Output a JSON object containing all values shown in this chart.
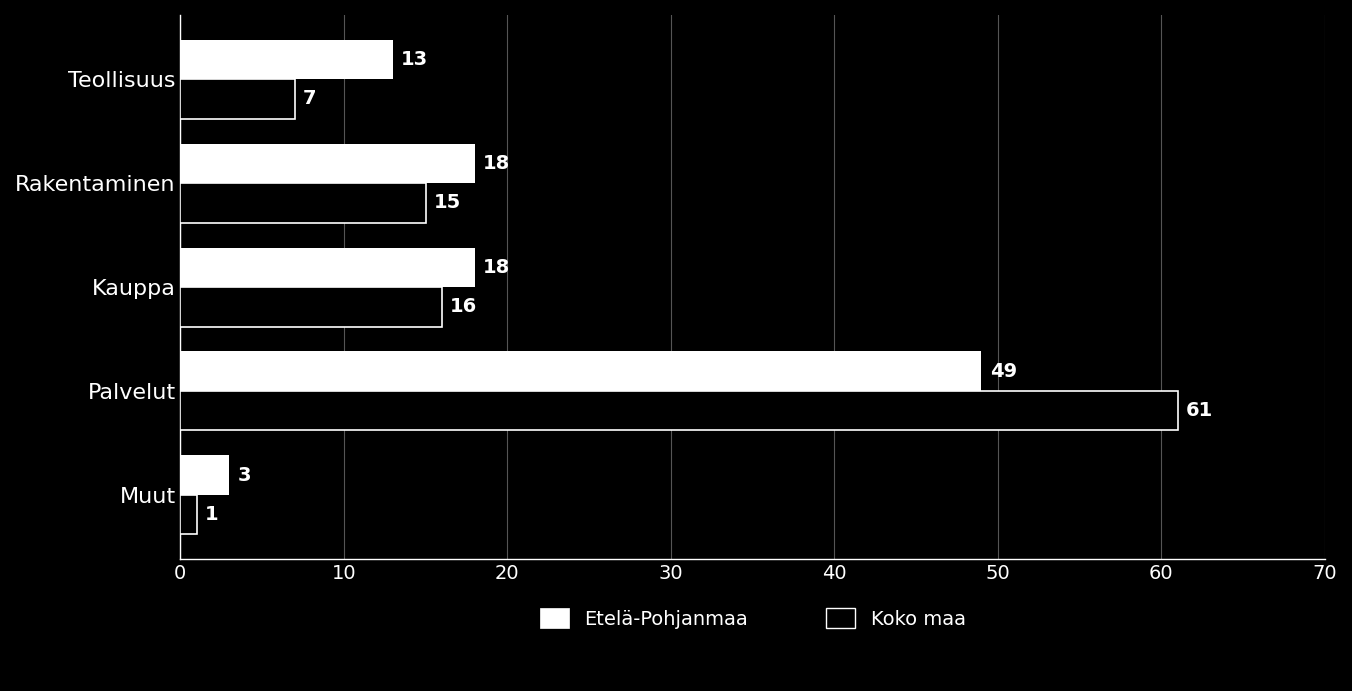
{
  "categories": [
    "Muut",
    "Palvelut",
    "Kauppa",
    "Rakentaminen",
    "Teollisuus"
  ],
  "series": [
    {
      "name": "Etelä-Pohjanmaa",
      "values": [
        3,
        49,
        18,
        18,
        13
      ],
      "color": "#ffffff"
    },
    {
      "name": "Koko maa",
      "values": [
        1,
        61,
        16,
        15,
        7
      ],
      "color": "#000000"
    }
  ],
  "xlim": [
    0,
    70
  ],
  "xticks": [
    0,
    10,
    20,
    30,
    40,
    50,
    60,
    70
  ],
  "background_color": "#000000",
  "text_color": "#ffffff",
  "grid_color": "#555555",
  "bar_height": 0.38,
  "label_fontsize": 16,
  "tick_fontsize": 14,
  "legend_fontsize": 14,
  "value_fontsize": 14
}
